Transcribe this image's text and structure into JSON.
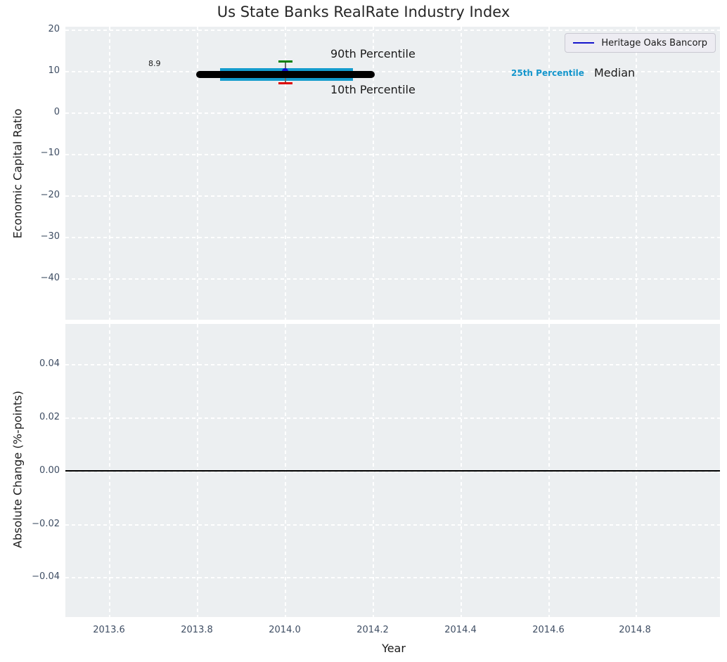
{
  "title": "Us State Banks RealRate Industry Index",
  "legend": {
    "label": "Heritage Oaks Bancorp",
    "line_color": "#1414cc"
  },
  "top_plot": {
    "ylabel": "Economic Capital Ratio",
    "yticks": [
      "20",
      "10",
      "0",
      "−10",
      "−20",
      "−30",
      "−40"
    ],
    "annotations": {
      "value_label": "8.9",
      "p90": "90th Percentile",
      "p10": "10th Percentile",
      "p25": "25th Percentile",
      "median": "Median"
    }
  },
  "bottom_plot": {
    "ylabel": "Absolute Change (%-points)",
    "yticks": [
      "0.04",
      "0.02",
      "0.00",
      "−0.02",
      "−0.04"
    ]
  },
  "xaxis": {
    "label": "Year",
    "ticks": [
      "2013.6",
      "2013.8",
      "2014.0",
      "2014.2",
      "2014.4",
      "2014.6",
      "2014.8"
    ]
  },
  "chart_data": [
    {
      "type": "line",
      "title": "Us State Banks RealRate Industry Index",
      "xlabel": "Year",
      "ylabel": "Economic Capital Ratio",
      "xlim": [
        2013.5,
        2015.0
      ],
      "ylim": [
        -50,
        20.7
      ],
      "grid": true,
      "legend_position": "upper right",
      "legend_entries": [
        "Heritage Oaks Bancorp"
      ],
      "series": [
        {
          "name": "Median",
          "color": "#000000",
          "style": "thick-line",
          "x": [
            2013.8,
            2014.2
          ],
          "y": [
            8.9,
            8.9
          ],
          "label": "8.9"
        },
        {
          "name": "25th-75th Percentile band",
          "color": "#149ccd",
          "style": "thick-line",
          "x": [
            2013.85,
            2014.15
          ],
          "y": [
            8.9,
            8.9
          ]
        },
        {
          "name": "90th Percentile",
          "color": "#008000",
          "style": "errorbar-cap",
          "x": [
            2014.0
          ],
          "y": [
            12.4
          ]
        },
        {
          "name": "10th Percentile",
          "color": "#dd0000",
          "style": "errorbar-cap",
          "x": [
            2014.0
          ],
          "y": [
            7.1
          ]
        },
        {
          "name": "Heritage Oaks Bancorp",
          "color": "#1010d0",
          "style": "point",
          "x": [
            2014.0
          ],
          "y": [
            9.6
          ]
        }
      ],
      "annotations": [
        "8.9",
        "90th Percentile",
        "10th Percentile",
        "25th Percentile",
        "Median"
      ]
    },
    {
      "type": "line",
      "xlabel": "Year",
      "ylabel": "Absolute Change (%-points)",
      "xlim": [
        2013.5,
        2015.0
      ],
      "ylim": [
        -0.055,
        0.055
      ],
      "grid": true,
      "series": [
        {
          "name": "zero-reference-line",
          "color": "#000000",
          "x": [
            2013.5,
            2015.0
          ],
          "y": [
            0.0,
            0.0
          ]
        }
      ]
    }
  ]
}
